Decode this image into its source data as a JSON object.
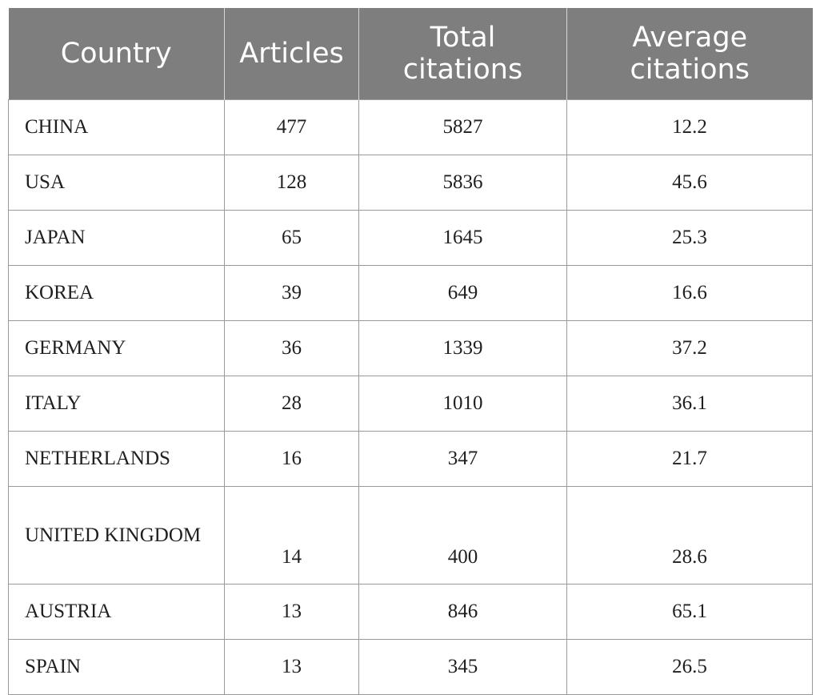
{
  "table": {
    "headers": [
      "Country",
      "Articles",
      "Total citations",
      "Average citations"
    ],
    "rows": [
      {
        "country": "CHINA",
        "articles": "477",
        "total": "5827",
        "average": "12.2"
      },
      {
        "country": "USA",
        "articles": "128",
        "total": "5836",
        "average": "45.6"
      },
      {
        "country": "JAPAN",
        "articles": "65",
        "total": "1645",
        "average": "25.3"
      },
      {
        "country": "KOREA",
        "articles": "39",
        "total": "649",
        "average": "16.6"
      },
      {
        "country": "GERMANY",
        "articles": "36",
        "total": "1339",
        "average": "37.2"
      },
      {
        "country": "ITALY",
        "articles": "28",
        "total": "1010",
        "average": "36.1"
      },
      {
        "country": "NETHERLANDS",
        "articles": "16",
        "total": "347",
        "average": "21.7"
      },
      {
        "country": "UNITED KINGDOM",
        "articles": "14",
        "total": "400",
        "average": "28.6"
      },
      {
        "country": "AUSTRIA",
        "articles": "13",
        "total": "846",
        "average": "65.1"
      },
      {
        "country": "SPAIN",
        "articles": "13",
        "total": "345",
        "average": "26.5"
      }
    ]
  }
}
